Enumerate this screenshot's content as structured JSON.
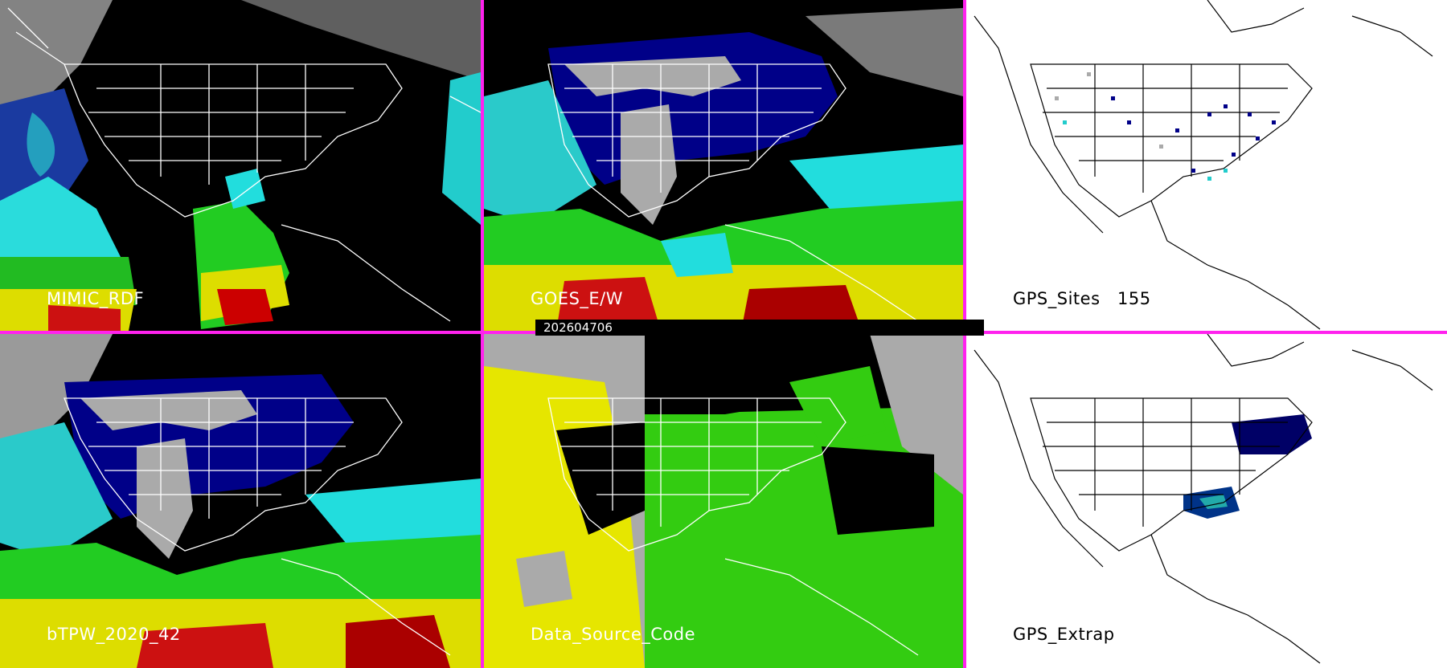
{
  "timestamp": "202604706",
  "colors": {
    "divider": "#ff22ee",
    "ocean_black": "#000000",
    "map_white": "#ffffff",
    "tpw_blue": "#000088",
    "tpw_cyan": "#22dddd",
    "tpw_green": "#22cc22",
    "tpw_yellow": "#dddd00",
    "tpw_red": "#cc0000",
    "cloud_gray": "#aaaaaa",
    "source_yellow": "#e6e600",
    "source_green": "#33cc11"
  },
  "panels": [
    {
      "id": "mimic",
      "label": "MIMIC_RDF",
      "background": "dark"
    },
    {
      "id": "goes",
      "label": "GOES_E/W",
      "background": "dark"
    },
    {
      "id": "gps-sites",
      "label": "GPS_Sites   155",
      "background": "light"
    },
    {
      "id": "btpw",
      "label": "bTPW_2020_42",
      "background": "dark"
    },
    {
      "id": "data-source",
      "label": "Data_Source_Code",
      "background": "dark"
    },
    {
      "id": "gps-extrap",
      "label": "GPS_Extrap",
      "background": "light"
    }
  ]
}
